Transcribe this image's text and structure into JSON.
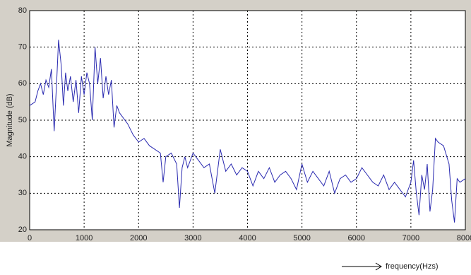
{
  "chart_data": {
    "type": "line",
    "ylabel": "Magnitude (dB)",
    "annotation": "frequency(Hzs)",
    "x": [
      0,
      100,
      150,
      200,
      250,
      300,
      350,
      400,
      450,
      500,
      530,
      580,
      620,
      660,
      700,
      750,
      800,
      850,
      900,
      950,
      1000,
      1050,
      1100,
      1150,
      1200,
      1250,
      1300,
      1350,
      1400,
      1450,
      1500,
      1550,
      1600,
      1650,
      1700,
      1800,
      1900,
      2000,
      2100,
      2200,
      2300,
      2400,
      2450,
      2500,
      2600,
      2700,
      2750,
      2800,
      2850,
      2900,
      3000,
      3100,
      3200,
      3300,
      3400,
      3500,
      3600,
      3700,
      3800,
      3900,
      4000,
      4100,
      4200,
      4300,
      4400,
      4500,
      4600,
      4700,
      4800,
      4900,
      5000,
      5100,
      5200,
      5300,
      5400,
      5500,
      5600,
      5700,
      5800,
      5900,
      6000,
      6100,
      6200,
      6300,
      6400,
      6500,
      6600,
      6700,
      6800,
      6900,
      7000,
      7050,
      7100,
      7150,
      7200,
      7250,
      7300,
      7350,
      7400,
      7450,
      7500,
      7600,
      7700,
      7750,
      7800,
      7850,
      7900,
      8000
    ],
    "series": [
      {
        "color": "#2a2ab0",
        "values": [
          54,
          55,
          58,
          60,
          57,
          61,
          59,
          64,
          47,
          62,
          72,
          65,
          54,
          63,
          58,
          62,
          55,
          61,
          52,
          62,
          57,
          63,
          60,
          50,
          70,
          60,
          67,
          56,
          62,
          57,
          61,
          48,
          54,
          52,
          51,
          49,
          46,
          44,
          45,
          43,
          42,
          41,
          33,
          40,
          41,
          38,
          26,
          37,
          40,
          37,
          41,
          39,
          37,
          38,
          30,
          42,
          36,
          38,
          35,
          37,
          36,
          32,
          36,
          34,
          37,
          33,
          35,
          36,
          34,
          31,
          38,
          33,
          36,
          34,
          32,
          36,
          30,
          34,
          35,
          33,
          34,
          37,
          35,
          33,
          32,
          35,
          31,
          33,
          31,
          29,
          33,
          39,
          30,
          24,
          35,
          31,
          38,
          25,
          31,
          45,
          44,
          43,
          38,
          28,
          22,
          34,
          33,
          34
        ]
      }
    ],
    "xlim": [
      0,
      8000
    ],
    "xticks": [
      0,
      1000,
      2000,
      3000,
      4000,
      5000,
      6000,
      7000,
      8000
    ],
    "ylim": [
      20,
      80
    ],
    "yticks": [
      20,
      30,
      40,
      50,
      60,
      70,
      80
    ],
    "grid": true
  }
}
